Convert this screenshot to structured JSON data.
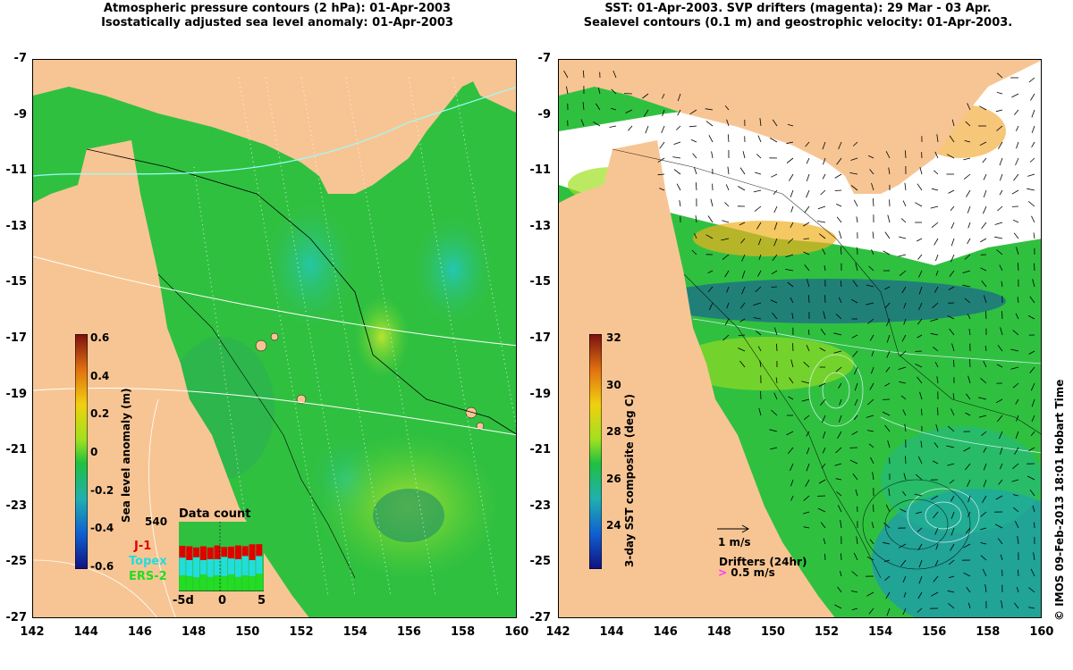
{
  "left": {
    "title_line1": "Atmospheric pressure contours (2 hPa): 01-Apr-2003",
    "title_line2": "Isostatically adjusted sea level anomaly: 01-Apr-2003",
    "colorbar_label": "Sea level anomaly (m)",
    "colorbar_ticks": [
      "0.6",
      "0.4",
      "0.2",
      "0",
      "-0.2",
      "-0.4",
      "-0.6"
    ],
    "data_count": {
      "title": "Data count",
      "max_label": "540",
      "legend": [
        "J-1",
        "Topex",
        "ERS-2"
      ],
      "legend_colors": [
        "#e00000",
        "#22dddd",
        "#22dd22"
      ],
      "x_labels": [
        "-5d",
        "0",
        "5"
      ]
    }
  },
  "right": {
    "title_line1": "SST: 01-Apr-2003. SVP drifters (magenta): 29 Mar - 03 Apr.",
    "title_line2": "Sealevel contours (0.1 m) and geostrophic velocity: 01-Apr-2003.",
    "colorbar_label": "3-day SST composite (deg C)",
    "colorbar_ticks": [
      "32",
      "30",
      "28",
      "26",
      "24"
    ],
    "velocity_scale_label": "1 m/s",
    "drifters_label": "Drifters (24hr)",
    "drifters_scale_label": "0.5 m/s"
  },
  "axes": {
    "y_ticks": [
      "-7",
      "-9",
      "-11",
      "-13",
      "-15",
      "-17",
      "-19",
      "-21",
      "-23",
      "-25",
      "-27"
    ],
    "x_ticks": [
      "142",
      "144",
      "146",
      "148",
      "150",
      "152",
      "154",
      "156",
      "158",
      "160"
    ]
  },
  "credit": "© IMOS 09-Feb-2013 18:01 Hobart Time",
  "colors": {
    "land": "#f7c594",
    "ocean": "#30c030",
    "no_data": "#ffffff"
  }
}
